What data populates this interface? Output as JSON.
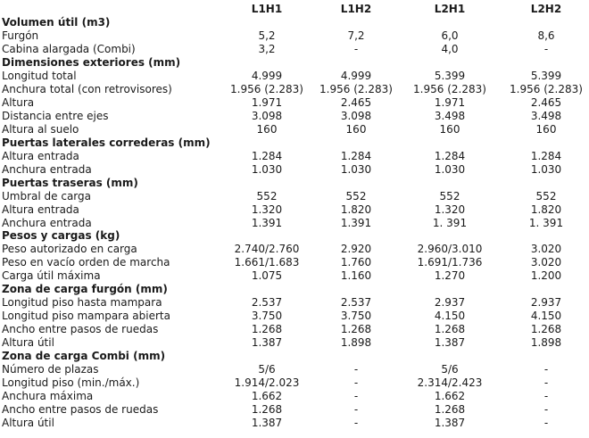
{
  "columns": [
    "L1H1",
    "L1H2",
    "L2H1",
    "L2H2"
  ],
  "rows": [
    {
      "type": "section",
      "label": "Volumen útil (m3)"
    },
    {
      "type": "data",
      "label": "Furgón",
      "values": [
        "5,2",
        "7,2",
        "6,0",
        "8,6"
      ]
    },
    {
      "type": "data",
      "label": "Cabina alargada (Combi)",
      "values": [
        "3,2",
        "-",
        "4,0",
        "-"
      ]
    },
    {
      "type": "section",
      "label": "Dimensiones exteriores (mm)"
    },
    {
      "type": "data",
      "label": "Longitud total",
      "values": [
        "4.999",
        "4.999",
        "5.399",
        "5.399"
      ]
    },
    {
      "type": "data",
      "label": "Anchura total (con retrovisores)",
      "values": [
        "1.956 (2.283)",
        "1.956 (2.283)",
        "1.956 (2.283)",
        "1.956 (2.283)"
      ]
    },
    {
      "type": "data",
      "label": "Altura",
      "values": [
        "1.971",
        "2.465",
        "1.971",
        "2.465"
      ]
    },
    {
      "type": "data",
      "label": "Distancia entre ejes",
      "values": [
        "3.098",
        "3.098",
        "3.498",
        "3.498"
      ]
    },
    {
      "type": "data",
      "label": "Altura al suelo",
      "values": [
        "160",
        "160",
        "160",
        "160"
      ]
    },
    {
      "type": "section",
      "label": "Puertas laterales correderas (mm)"
    },
    {
      "type": "data",
      "label": "Altura entrada",
      "values": [
        "1.284",
        "1.284",
        "1.284",
        "1.284"
      ]
    },
    {
      "type": "data",
      "label": "Anchura entrada",
      "values": [
        "1.030",
        "1.030",
        "1.030",
        "1.030"
      ]
    },
    {
      "type": "section",
      "label": "Puertas traseras (mm)"
    },
    {
      "type": "data",
      "label": "Umbral de carga",
      "values": [
        "552",
        "552",
        "552",
        "552"
      ]
    },
    {
      "type": "data",
      "label": "Altura entrada",
      "values": [
        "1.320",
        "1.820",
        "1.320",
        "1.820"
      ]
    },
    {
      "type": "data",
      "label": "Anchura entrada",
      "values": [
        "1.391",
        "1.391",
        "1. 391",
        "1. 391"
      ]
    },
    {
      "type": "section",
      "label": "Pesos y cargas (kg)"
    },
    {
      "type": "data",
      "label": "Peso autorizado en carga",
      "values": [
        "2.740/2.760",
        "2.920",
        "2.960/3.010",
        "3.020"
      ]
    },
    {
      "type": "data",
      "label": "Peso en vacío orden de marcha",
      "values": [
        "1.661/1.683",
        "1.760",
        "1.691/1.736",
        "3.020"
      ]
    },
    {
      "type": "data",
      "label": "Carga útil máxima",
      "values": [
        "1.075",
        "1.160",
        "1.270",
        "1.200"
      ]
    },
    {
      "type": "section",
      "label": "Zona de carga furgón (mm)"
    },
    {
      "type": "data",
      "label": "Longitud piso hasta mampara",
      "values": [
        "2.537",
        "2.537",
        "2.937",
        "2.937"
      ]
    },
    {
      "type": "data",
      "label": "Longitud piso mampara abierta",
      "values": [
        "3.750",
        "3.750",
        "4.150",
        "4.150"
      ]
    },
    {
      "type": "data",
      "label": "Ancho entre pasos de ruedas",
      "values": [
        "1.268",
        "1.268",
        "1.268",
        "1.268"
      ]
    },
    {
      "type": "data",
      "label": "Altura útil",
      "values": [
        "1.387",
        "1.898",
        "1.387",
        "1.898"
      ]
    },
    {
      "type": "section",
      "label": "Zona de carga Combi (mm)"
    },
    {
      "type": "data",
      "label": "Número de plazas",
      "values": [
        "5/6",
        "-",
        "5/6",
        "-"
      ]
    },
    {
      "type": "data",
      "label": "Longitud piso (min./máx.)",
      "values": [
        "1.914/2.023",
        "-",
        "2.314/2.423",
        "-"
      ]
    },
    {
      "type": "data",
      "label": "Anchura máxima",
      "values": [
        "1.662",
        "-",
        "1.662",
        "-"
      ]
    },
    {
      "type": "data",
      "label": "Ancho entre pasos de ruedas",
      "values": [
        "1.268",
        "-",
        "1.268",
        "-"
      ]
    },
    {
      "type": "data",
      "label": "Altura útil",
      "values": [
        "1.387",
        "-",
        "1.387",
        "-"
      ]
    }
  ]
}
